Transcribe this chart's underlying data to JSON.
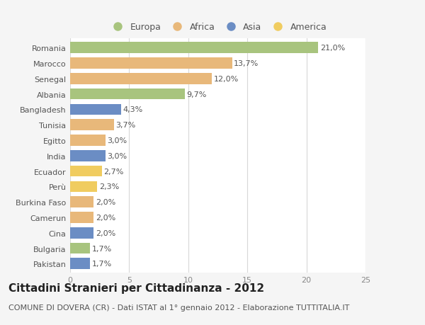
{
  "countries": [
    "Romania",
    "Marocco",
    "Senegal",
    "Albania",
    "Bangladesh",
    "Tunisia",
    "Egitto",
    "India",
    "Ecuador",
    "Perù",
    "Burkina Faso",
    "Camerun",
    "Cina",
    "Bulgaria",
    "Pakistan"
  ],
  "values": [
    21.0,
    13.7,
    12.0,
    9.7,
    4.3,
    3.7,
    3.0,
    3.0,
    2.7,
    2.3,
    2.0,
    2.0,
    2.0,
    1.7,
    1.7
  ],
  "labels": [
    "21,0%",
    "13,7%",
    "12,0%",
    "9,7%",
    "4,3%",
    "3,7%",
    "3,0%",
    "3,0%",
    "2,7%",
    "2,3%",
    "2,0%",
    "2,0%",
    "2,0%",
    "1,7%",
    "1,7%"
  ],
  "continents": [
    "Europa",
    "Africa",
    "Africa",
    "Europa",
    "Asia",
    "Africa",
    "Africa",
    "Asia",
    "America",
    "America",
    "Africa",
    "Africa",
    "Asia",
    "Europa",
    "Asia"
  ],
  "continent_colors": {
    "Europa": "#a8c47e",
    "Africa": "#e8b87a",
    "Asia": "#6b8dc4",
    "America": "#f0cc60"
  },
  "legend_order": [
    "Europa",
    "Africa",
    "Asia",
    "America"
  ],
  "title": "Cittadini Stranieri per Cittadinanza - 2012",
  "subtitle": "COMUNE DI DOVERA (CR) - Dati ISTAT al 1° gennaio 2012 - Elaborazione TUTTITALIA.IT",
  "xlim": [
    0,
    25
  ],
  "xticks": [
    0,
    5,
    10,
    15,
    20,
    25
  ],
  "background_color": "#f5f5f5",
  "plot_bg_color": "#ffffff",
  "grid_color": "#d8d8d8",
  "bar_height": 0.72,
  "title_fontsize": 11,
  "subtitle_fontsize": 8,
  "label_fontsize": 8,
  "tick_fontsize": 8,
  "legend_fontsize": 9
}
